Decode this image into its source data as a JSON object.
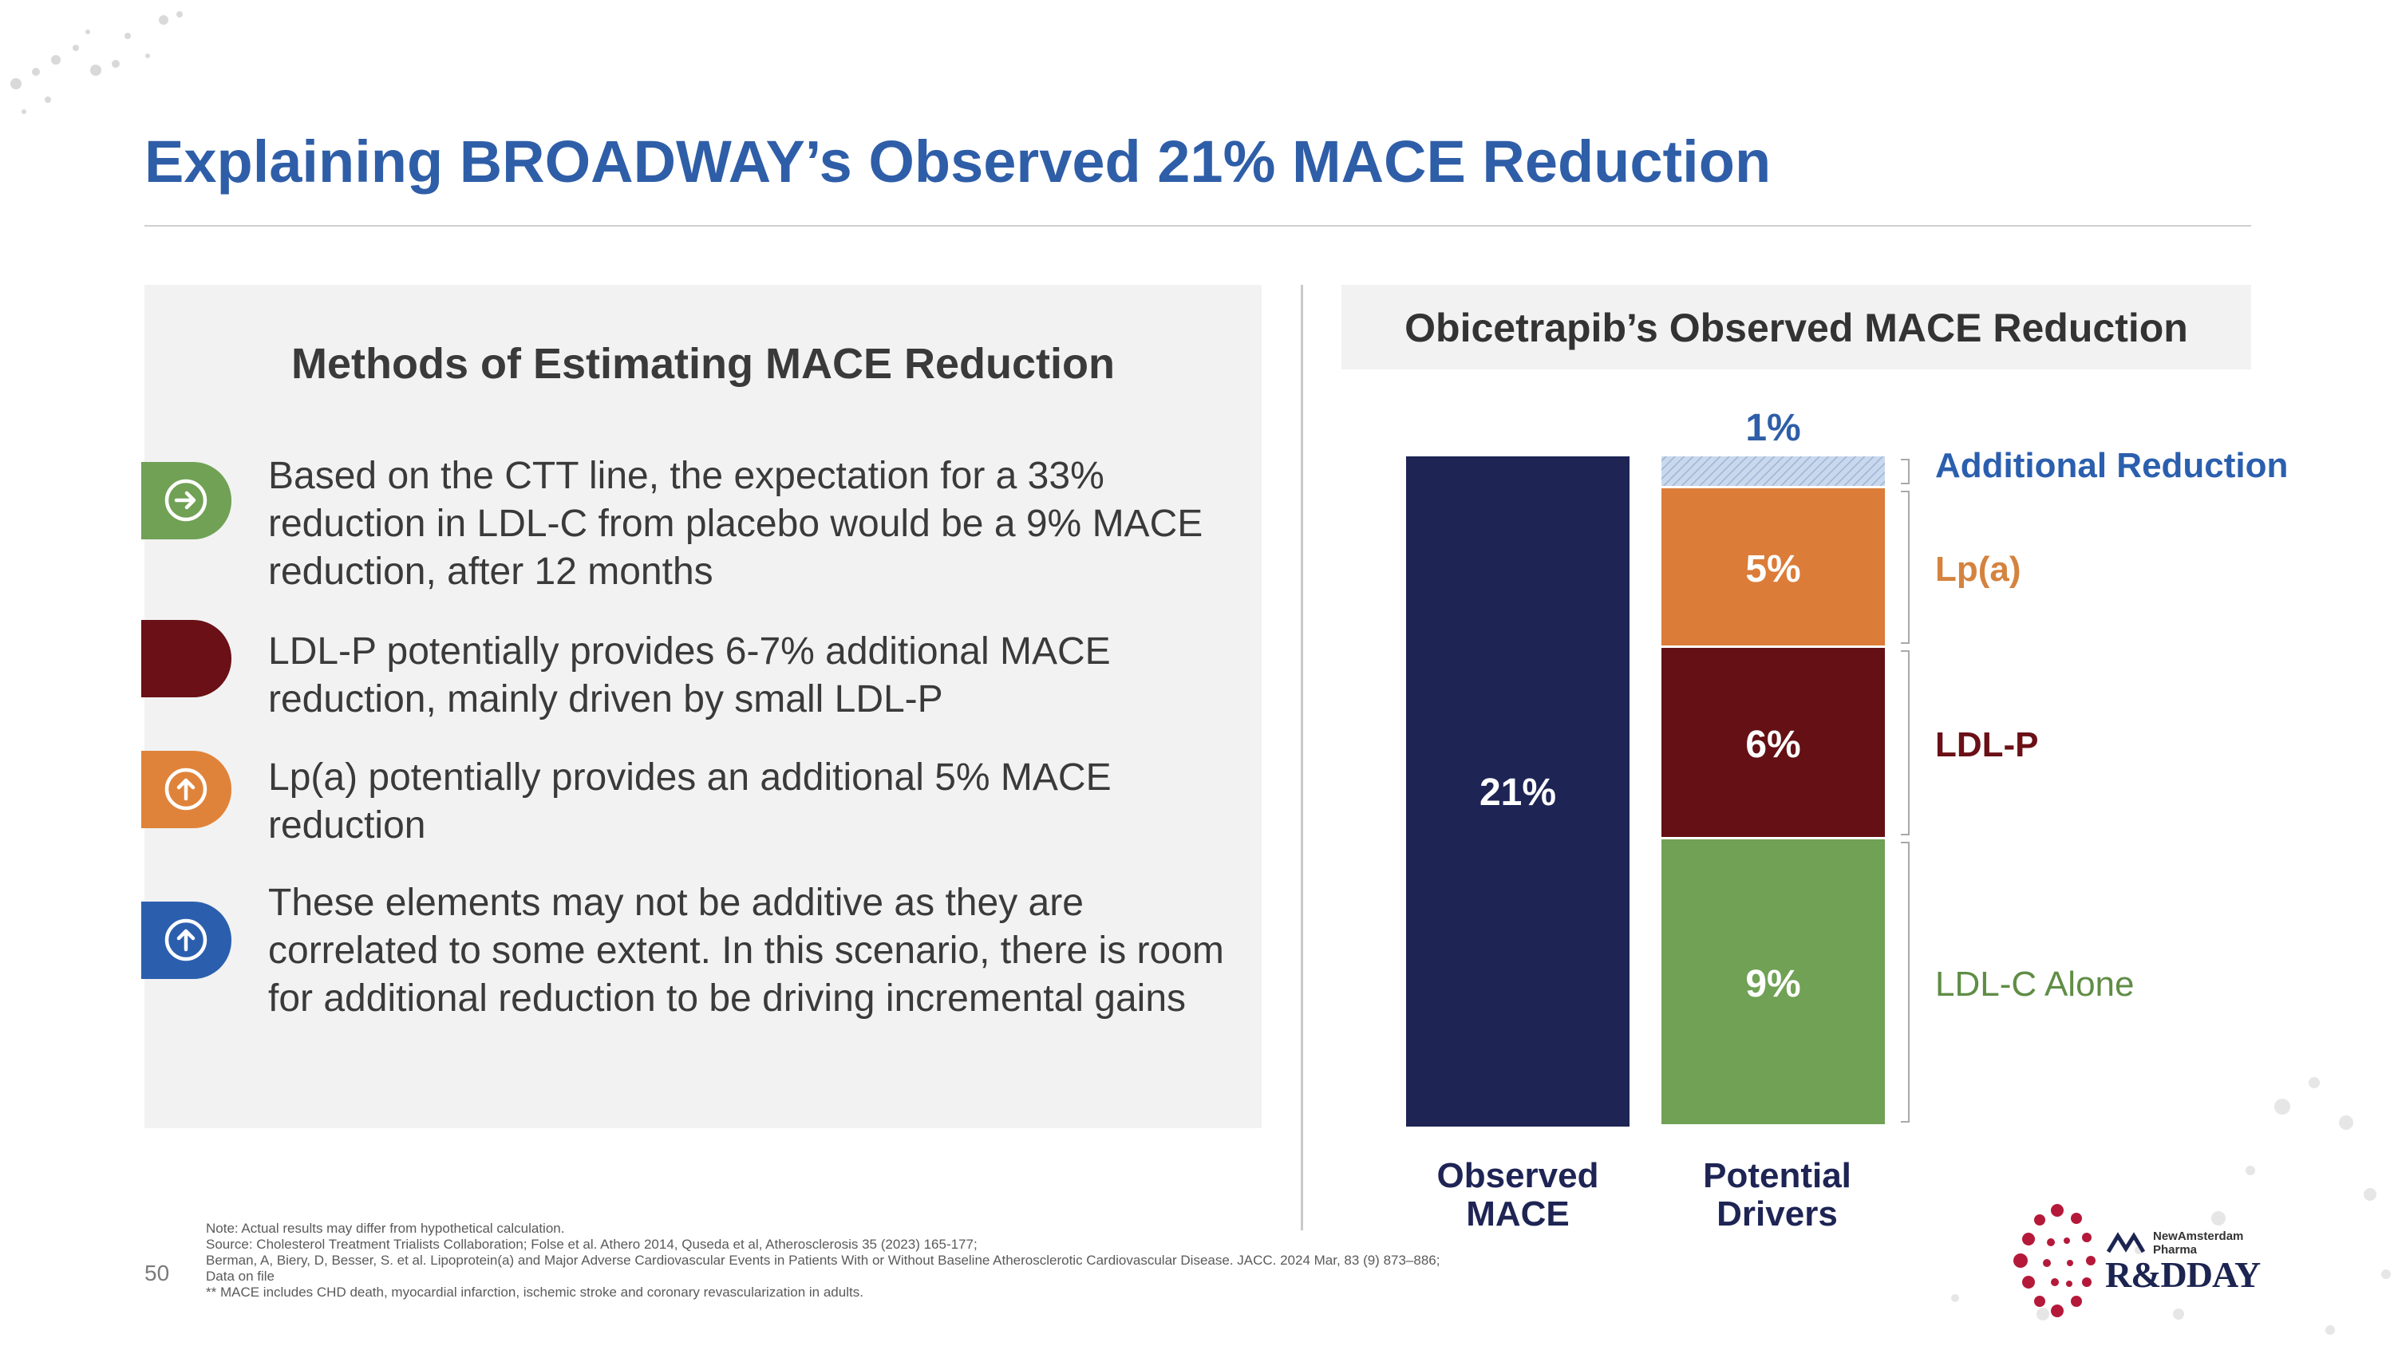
{
  "page": {
    "title": "Explaining BROADWAY’s Observed 21% MACE Reduction",
    "page_number": "50"
  },
  "left": {
    "heading": "Methods of Estimating MACE Reduction",
    "methods": [
      {
        "text": "Based on the CTT line, the expectation for a 33% reduction in LDL-C from placebo would be a 9% MACE reduction, after 12 months",
        "color": "#70a155",
        "icon": "arrow-right-circle-icon"
      },
      {
        "text": "LDL-P potentially provides 6-7% additional MACE reduction, mainly driven by small LDL-P",
        "color": "#6a1016",
        "icon": ""
      },
      {
        "text": "Lp(a) potentially provides an additional 5% MACE reduction",
        "color": "#e0833a",
        "icon": "arrow-up-circle-icon"
      },
      {
        "text": "These elements may not be additive as they are correlated to some extent. In this scenario, there is room for additional reduction to be driving incremental gains",
        "color": "#2b5fae",
        "icon": "arrow-up-circle-icon"
      }
    ]
  },
  "chart_header": {
    "title": "Obicetrapib’s Observed MACE Reduction"
  },
  "chart_data": {
    "type": "bar",
    "stacked": true,
    "title": "Obicetrapib’s Observed MACE Reduction",
    "categories": [
      "Observed MACE",
      "Potential Drivers"
    ],
    "ylim": [
      0,
      21
    ],
    "series": [
      {
        "name": "Observed MACE",
        "category": "Observed MACE",
        "values": [
          21,
          0
        ],
        "label": "21%",
        "color": "#1e2454",
        "legend_color": "#1e2454"
      },
      {
        "name": "LDL-C Alone",
        "category": "Potential Drivers",
        "values": [
          0,
          9
        ],
        "label": "9%",
        "color": "#70a155",
        "legend_color": "#5f8d45"
      },
      {
        "name": "LDL-P",
        "category": "Potential Drivers",
        "values": [
          0,
          6
        ],
        "label": "6%",
        "color": "#641015",
        "legend_color": "#6a1016"
      },
      {
        "name": "Lp(a)",
        "category": "Potential Drivers",
        "values": [
          0,
          5
        ],
        "label": "5%",
        "color": "#db7c38",
        "legend_color": "#d4833f"
      },
      {
        "name": "Additional Reduction",
        "category": "Potential Drivers",
        "values": [
          0,
          1
        ],
        "label": "1%",
        "color": "#c7d6ea",
        "legend_color": "#2b5fae"
      }
    ],
    "axis_labels": {
      "observed": [
        "Observed",
        "MACE"
      ],
      "drivers": [
        "Potential",
        "Drivers"
      ]
    }
  },
  "footer": {
    "notes": [
      "Note: Actual results may differ from hypothetical calculation.",
      "Source: Cholesterol Treatment Trialists Collaboration; Folse et al. Athero 2014, Quseda et al, Atherosclerosis 35 (2023) 165-177;",
      "Berman, A, Biery, D, Besser, S. et al. Lipoprotein(a) and Major Adverse Cardiovascular Events in Patients With or Without Baseline Atherosclerotic Cardiovascular Disease. JACC. 2024 Mar, 83 (9) 873–886;",
      "Data on file",
      "** MACE includes CHD death, myocardial infarction, ischemic stroke and coronary revascularization in adults."
    ]
  },
  "logo": {
    "company_line1": "NewAmsterdam",
    "company_line2": "Pharma",
    "event": "R&DDAY"
  }
}
